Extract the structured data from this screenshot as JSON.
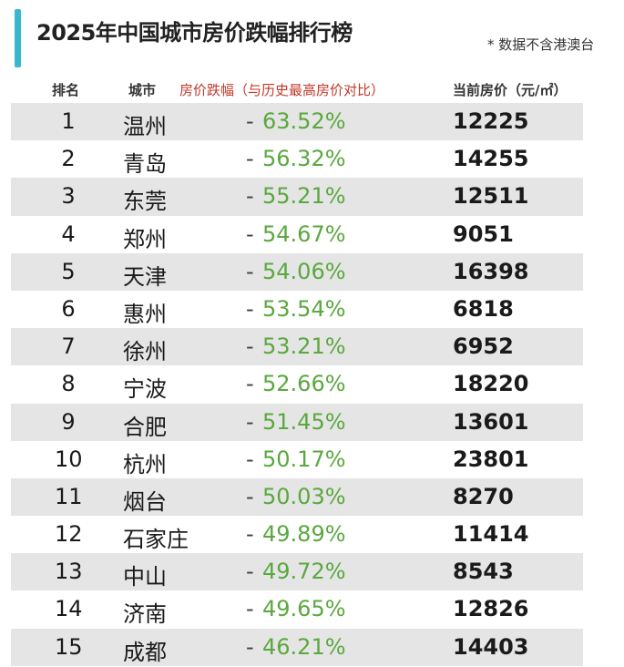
{
  "title": "2025年中国城市房价跌幅排行榜",
  "note": "* 数据不含港澳台",
  "accent": "#3ab7d0",
  "chart_data": {
    "type": "table",
    "title": "2025年中国城市房价跌幅排行榜",
    "columns": [
      "排名",
      "城市",
      "房价跌幅（与历史最高房价对比）",
      "当前房价（元/㎡）"
    ],
    "rows": [
      {
        "rank": "1",
        "city": "温州",
        "drop": "63.52%",
        "price": "12225"
      },
      {
        "rank": "2",
        "city": "青岛",
        "drop": "56.32%",
        "price": "14255"
      },
      {
        "rank": "3",
        "city": "东莞",
        "drop": "55.21%",
        "price": "12511"
      },
      {
        "rank": "4",
        "city": "郑州",
        "drop": "54.67%",
        "price": "9051"
      },
      {
        "rank": "5",
        "city": "天津",
        "drop": "54.06%",
        "price": "16398"
      },
      {
        "rank": "6",
        "city": "惠州",
        "drop": "53.54%",
        "price": "6818"
      },
      {
        "rank": "7",
        "city": "徐州",
        "drop": "53.21%",
        "price": "6952"
      },
      {
        "rank": "8",
        "city": "宁波",
        "drop": "52.66%",
        "price": "18220"
      },
      {
        "rank": "9",
        "city": "合肥",
        "drop": "51.45%",
        "price": "13601"
      },
      {
        "rank": "10",
        "city": "杭州",
        "drop": "50.17%",
        "price": "23801"
      },
      {
        "rank": "11",
        "city": "烟台",
        "drop": "50.03%",
        "price": "8270"
      },
      {
        "rank": "12",
        "city": "石家庄",
        "drop": "49.89%",
        "price": "11414"
      },
      {
        "rank": "13",
        "city": "中山",
        "drop": "49.72%",
        "price": "8543"
      },
      {
        "rank": "14",
        "city": "济南",
        "drop": "49.65%",
        "price": "12826"
      },
      {
        "rank": "15",
        "city": "成都",
        "drop": "46.21%",
        "price": "14403"
      }
    ],
    "dash": "-"
  }
}
